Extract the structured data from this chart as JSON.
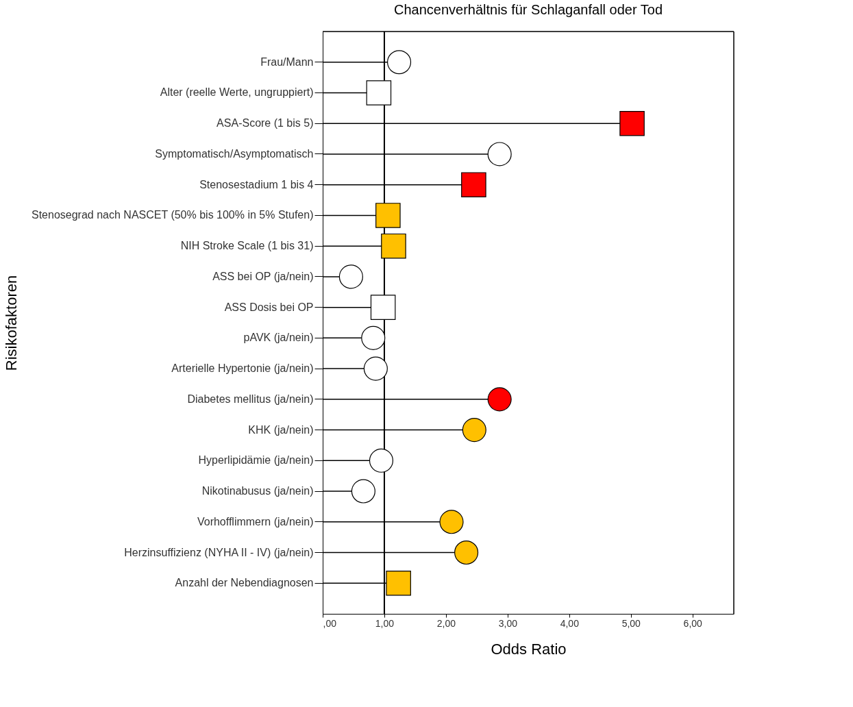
{
  "chart_data": {
    "type": "lollipop",
    "orientation": "horizontal",
    "title": "Chancenverhältnis für Schlaganfall oder Tod",
    "xlabel": "Odds Ratio",
    "ylabel": "Risikofaktoren",
    "categories": [
      "Frau/Mann",
      "Alter (reelle Werte, ungruppiert)",
      "ASA-Score (1 bis 5)",
      "Symptomatisch/Asymptomatisch",
      "Stenosestadium 1 bis 4",
      "Stenosegrad nach NASCET (50% bis 100% in 5% Stufen)",
      "NIH Stroke Scale (1 bis 31)",
      "ASS bei OP (ja/nein)",
      "ASS Dosis bei OP",
      "pAVK (ja/nein)",
      "Arterielle Hypertonie (ja/nein)",
      "Diabetes mellitus (ja/nein)",
      "KHK (ja/nein)",
      "Hyperlipidämie (ja/nein)",
      "Nikotinabusus (ja/nein)",
      "Vorhofflimmern (ja/nein)",
      "Herzinsuffizienz (NYHA II - IV) (ja/nein)",
      "Anzahl der Nebendiagnosen"
    ],
    "series": [
      {
        "marker": "circle",
        "values": [
          1.24,
          null,
          null,
          2.87,
          null,
          null,
          null,
          0.46,
          null,
          0.82,
          0.86,
          2.87,
          2.46,
          0.95,
          0.66,
          2.09,
          2.33,
          null
        ],
        "colors": [
          "#ffffff",
          null,
          null,
          "#ffffff",
          null,
          null,
          null,
          "#ffffff",
          null,
          "#ffffff",
          "#ffffff",
          "#ff0000",
          "#ffc000",
          "#ffffff",
          "#ffffff",
          "#ffc000",
          "#ffc000",
          null
        ]
      },
      {
        "marker": "square",
        "values": [
          null,
          0.91,
          5.02,
          null,
          2.45,
          1.06,
          1.15,
          null,
          0.98,
          null,
          null,
          null,
          null,
          null,
          null,
          null,
          null,
          1.23
        ],
        "colors": [
          null,
          "#ffffff",
          "#ff0000",
          null,
          "#ff0000",
          "#ffc000",
          "#ffc000",
          null,
          "#ffffff",
          null,
          null,
          null,
          null,
          null,
          null,
          null,
          null,
          "#ffc000"
        ]
      }
    ],
    "xlim": [
      0,
      6.67
    ],
    "xticks": [
      {
        "value": 0,
        "label": ",00"
      },
      {
        "value": 1,
        "label": "1,00"
      },
      {
        "value": 2,
        "label": "2,00"
      },
      {
        "value": 3,
        "label": "3,00"
      },
      {
        "value": 4,
        "label": "4,00"
      },
      {
        "value": 5,
        "label": "5,00"
      },
      {
        "value": 6,
        "label": "6,00"
      }
    ],
    "ref_lines": [
      {
        "axis": "x",
        "value": 1,
        "color": "#000000"
      }
    ],
    "grid": false
  }
}
